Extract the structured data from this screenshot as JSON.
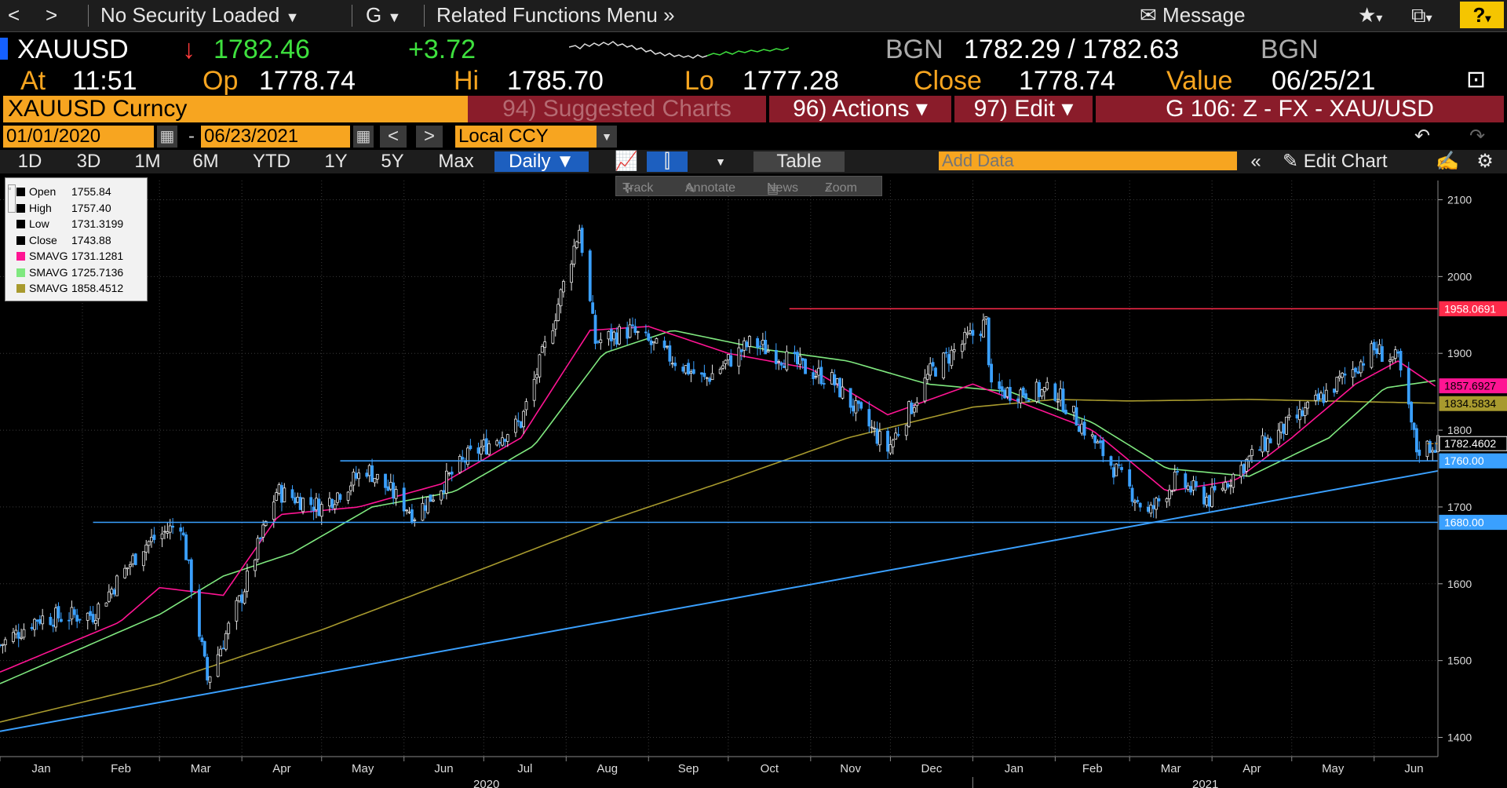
{
  "toolbar": {
    "back": "<",
    "forward": ">",
    "security": "No Security Loaded",
    "g": "G",
    "related": "Related Functions Menu",
    "message": "Message",
    "help": "?"
  },
  "quote": {
    "ticker": "XAUUSD",
    "direction": "↓",
    "last": "1782.46",
    "change": "+3.72",
    "source_left": "BGN",
    "bid_ask": "1782.29 / 1782.63",
    "source_right": "BGN",
    "at_label": "At",
    "at_value": "11:51",
    "op_label": "Op",
    "op_value": "1778.74",
    "hi_label": "Hi",
    "hi_value": "1785.70",
    "lo_label": "Lo",
    "lo_value": "1777.28",
    "close_label": "Close",
    "close_value": "1778.74",
    "value_label": "Value",
    "value_date": "06/25/21"
  },
  "security_bar": {
    "name": "XAUUSD Curncy",
    "suggested": "94) Suggested Charts",
    "actions": "96) Actions ▾",
    "edit": "97) Edit ▾",
    "chart_id": "G 106: Z - FX - XAU/USD"
  },
  "date_bar": {
    "start": "01/01/2020",
    "dash": "-",
    "end": "06/23/2021",
    "currency": "Local CCY"
  },
  "range_bar": {
    "ranges": [
      "1D",
      "3D",
      "1M",
      "6M",
      "YTD",
      "1Y",
      "5Y",
      "Max"
    ],
    "period": "Daily ▼",
    "table": "Table",
    "add_data_placeholder": "Add Data",
    "edit_chart": "Edit Chart"
  },
  "track_toolbar": {
    "track": "Track",
    "annotate": "Annotate",
    "news": "News",
    "zoom": "Zoom"
  },
  "legend": [
    {
      "name": "Open",
      "value": "1755.84",
      "color": "#000000"
    },
    {
      "name": "High",
      "value": "1757.40",
      "color": "#000000"
    },
    {
      "name": "Low",
      "value": "1731.3199",
      "color": "#000000"
    },
    {
      "name": "Close",
      "value": "1743.88",
      "color": "#000000"
    },
    {
      "name": "SMAVG",
      "value": "1731.1281",
      "color": "#ff1493"
    },
    {
      "name": "SMAVG",
      "value": "1725.7136",
      "color": "#7fe87f"
    },
    {
      "name": "SMAVG",
      "value": "1858.4512",
      "color": "#a89a2e"
    }
  ],
  "colors": {
    "up_candle": "#e8e8e8",
    "down_candle": "#3aa0ff",
    "sma_short": "#ff1493",
    "sma_mid": "#7fe87f",
    "sma_long": "#a89a2e",
    "resistance": "#ff2a4a",
    "support": "#3aa0ff",
    "accent": "#f7a520"
  },
  "chart_data": {
    "type": "candlestick",
    "x_start": "2020-01-01",
    "x_end": "2021-06-25",
    "ylim": [
      1375,
      2125
    ],
    "y_ticks": [
      1400,
      1500,
      1600,
      1700,
      1800,
      1900,
      2000,
      2100
    ],
    "x_tick_labels": [
      "Jan",
      "Feb",
      "Mar",
      "Apr",
      "May",
      "Jun",
      "Jul",
      "Aug",
      "Sep",
      "Oct",
      "Nov",
      "Dec",
      "Jan",
      "Feb",
      "Mar",
      "Apr",
      "May",
      "Jun"
    ],
    "year_labels": [
      "2020",
      "2021"
    ],
    "grid": true,
    "price_anchors": {
      "dates": [
        "2020-01-01",
        "2020-01-15",
        "2020-02-05",
        "2020-02-24",
        "2020-03-09",
        "2020-03-19",
        "2020-04-01",
        "2020-04-14",
        "2020-05-01",
        "2020-05-18",
        "2020-06-05",
        "2020-06-25",
        "2020-07-15",
        "2020-07-27",
        "2020-08-06",
        "2020-08-12",
        "2020-08-25",
        "2020-09-22",
        "2020-10-10",
        "2020-10-30",
        "2020-11-09",
        "2020-11-30",
        "2020-12-16",
        "2021-01-06",
        "2021-01-08",
        "2021-02-01",
        "2021-02-18",
        "2021-03-08",
        "2021-03-18",
        "2021-03-31",
        "2021-04-20",
        "2021-05-10",
        "2021-06-01",
        "2021-06-10",
        "2021-06-17",
        "2021-06-25"
      ],
      "closes": [
        1520,
        1555,
        1560,
        1650,
        1680,
        1475,
        1585,
        1720,
        1700,
        1750,
        1690,
        1765,
        1810,
        1940,
        2063,
        1915,
        1930,
        1865,
        1915,
        1880,
        1865,
        1775,
        1875,
        1940,
        1850,
        1850,
        1775,
        1690,
        1735,
        1710,
        1780,
        1835,
        1905,
        1890,
        1775,
        1782
      ]
    },
    "sma_short": {
      "dates": [
        "2020-01-01",
        "2020-02-15",
        "2020-03-01",
        "2020-03-25",
        "2020-04-15",
        "2020-05-15",
        "2020-06-15",
        "2020-07-15",
        "2020-08-10",
        "2020-09-01",
        "2020-10-01",
        "2020-11-01",
        "2020-11-30",
        "2021-01-01",
        "2021-02-15",
        "2021-03-15",
        "2021-04-10",
        "2021-05-01",
        "2021-05-25",
        "2021-06-10",
        "2021-06-25"
      ],
      "values": [
        1485,
        1550,
        1595,
        1585,
        1690,
        1700,
        1730,
        1790,
        1930,
        1935,
        1900,
        1880,
        1820,
        1860,
        1800,
        1720,
        1735,
        1790,
        1860,
        1890,
        1855
      ]
    },
    "sma_mid": {
      "dates": [
        "2020-01-01",
        "2020-03-01",
        "2020-03-25",
        "2020-04-20",
        "2020-05-20",
        "2020-06-20",
        "2020-07-20",
        "2020-08-15",
        "2020-09-10",
        "2020-10-15",
        "2020-11-15",
        "2020-12-15",
        "2021-01-15",
        "2021-02-15",
        "2021-03-15",
        "2021-04-15",
        "2021-05-15",
        "2021-06-05",
        "2021-06-25"
      ],
      "values": [
        1470,
        1560,
        1610,
        1640,
        1700,
        1720,
        1780,
        1900,
        1930,
        1905,
        1890,
        1860,
        1850,
        1810,
        1750,
        1740,
        1790,
        1855,
        1865
      ]
    },
    "sma_long": {
      "dates": [
        "2020-01-01",
        "2020-03-01",
        "2020-05-01",
        "2020-07-01",
        "2020-08-15",
        "2020-10-01",
        "2020-11-15",
        "2021-01-01",
        "2021-02-01",
        "2021-03-01",
        "2021-04-15",
        "2021-06-25"
      ],
      "values": [
        1420,
        1470,
        1540,
        1620,
        1680,
        1735,
        1790,
        1830,
        1840,
        1838,
        1840,
        1835
      ]
    },
    "levels": [
      {
        "value": 1958.0691,
        "label": "1958.0691",
        "start": "2020-10-24",
        "color": "#ff2a4a"
      },
      {
        "value": 1760.0,
        "label": "1760.00",
        "start": "2020-05-08",
        "color": "#3aa0ff"
      },
      {
        "value": 1680.0,
        "label": "1680.00",
        "start": "2020-02-05",
        "color": "#3aa0ff"
      }
    ],
    "trendline": {
      "start_date": "2020-01-01",
      "start_value": 1408,
      "end_date": "2021-06-25",
      "end_value": 1747
    },
    "last_labels": [
      {
        "label": "1857.6927",
        "value": 1857.6927,
        "color": "#ff1493"
      },
      {
        "label": "1834.5834",
        "value": 1834.5834,
        "color": "#a89a2e"
      },
      {
        "label": "1782.4602",
        "value": 1782.4602,
        "color": "#000000"
      }
    ]
  }
}
